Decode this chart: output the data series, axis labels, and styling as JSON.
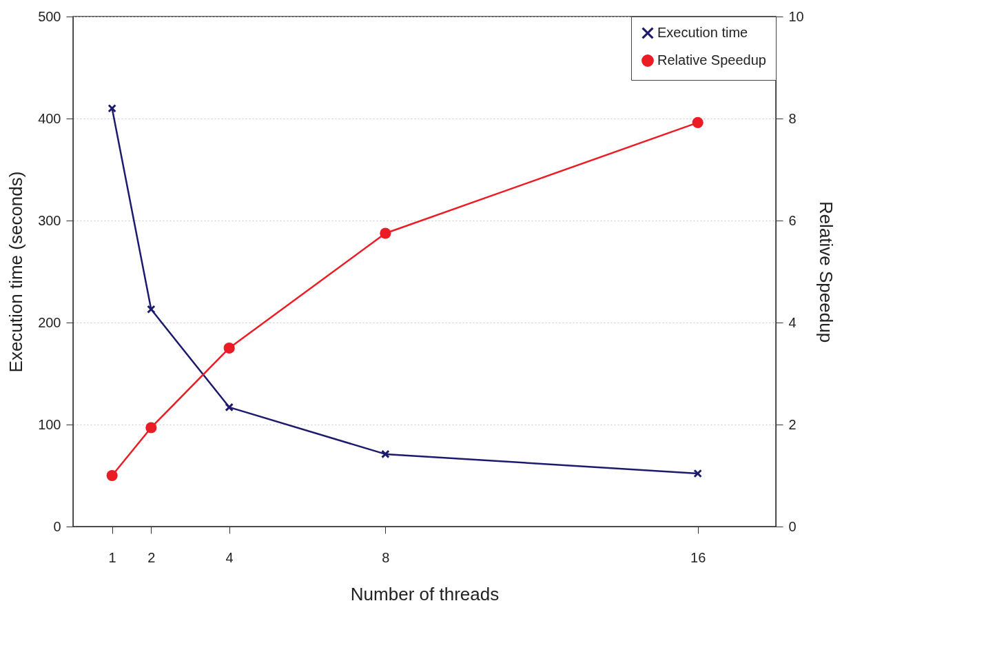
{
  "chart_data": {
    "type": "line",
    "xlabel": "Number of threads",
    "ylabel": "Execution time (seconds)",
    "y2label": "Relative Speedup",
    "x": [
      1,
      2,
      4,
      8,
      16
    ],
    "xlim": [
      0,
      18
    ],
    "xticks": [
      1,
      2,
      4,
      8,
      16
    ],
    "ylim": [
      0,
      500
    ],
    "yticks": [
      0,
      100,
      200,
      300,
      400,
      500
    ],
    "y2lim": [
      0,
      10
    ],
    "y2ticks": [
      0,
      2,
      4,
      6,
      8,
      10
    ],
    "series": [
      {
        "name": "Execution time",
        "color": "#1c1a6e",
        "marker": "cross",
        "values": [
          410,
          213,
          117,
          71,
          52
        ]
      },
      {
        "name": "Relative Speedup",
        "color": "#ec1c24",
        "marker": "circle",
        "axis": "y2",
        "values": [
          1,
          1.94,
          3.5,
          5.75,
          7.92
        ]
      }
    ],
    "grid": "y",
    "legend": "top right",
    "line_style": "solid"
  }
}
